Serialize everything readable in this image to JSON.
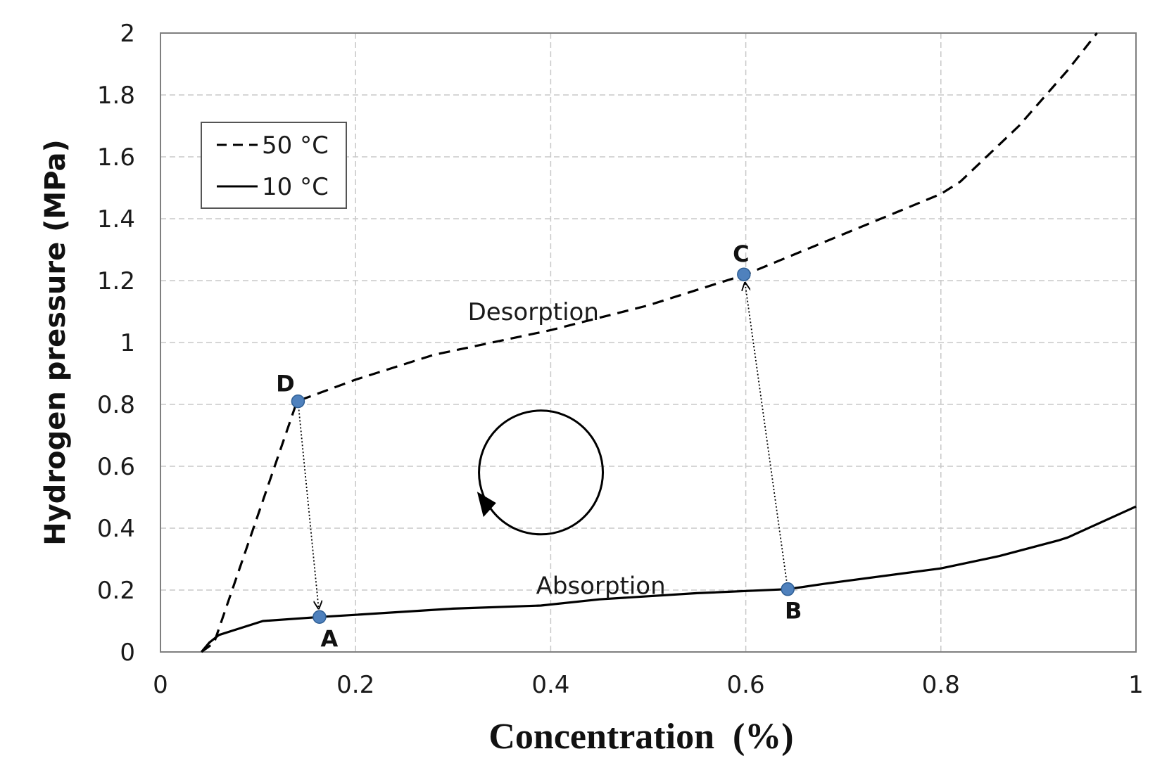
{
  "chart_data": {
    "type": "line",
    "title": "",
    "xlabel": "Concentration  (%)",
    "ylabel": "Hydrogen pressure (MPa)",
    "xlim": [
      0,
      1
    ],
    "ylim": [
      0,
      2
    ],
    "x_ticks": [
      "0",
      "0.2",
      "0.4",
      "0.6",
      "0.8",
      "1"
    ],
    "y_ticks": [
      "0",
      "0.2",
      "0.4",
      "0.6",
      "0.8",
      "1",
      "1.2",
      "1.4",
      "1.6",
      "1.8",
      "2"
    ],
    "x_tick_values": [
      0,
      0.2,
      0.4,
      0.6,
      0.8,
      1
    ],
    "y_tick_values": [
      0,
      0.2,
      0.4,
      0.6,
      0.8,
      1,
      1.2,
      1.4,
      1.6,
      1.8,
      2
    ],
    "grid": true,
    "legend_position": "top-left",
    "series": [
      {
        "name": "50 °C",
        "style": "dashed",
        "color": "#000000",
        "x": [
          0.042,
          0.055,
          0.14,
          0.2,
          0.28,
          0.4,
          0.5,
          0.6,
          0.7,
          0.8,
          0.82,
          0.88,
          0.93,
          0.96
        ],
        "y": [
          0.0,
          0.03,
          0.81,
          0.88,
          0.96,
          1.04,
          1.12,
          1.22,
          1.35,
          1.48,
          1.52,
          1.7,
          1.88,
          2.0
        ]
      },
      {
        "name": "10 °C",
        "style": "solid",
        "color": "#000000",
        "x": [
          0.042,
          0.05,
          0.06,
          0.08,
          0.105,
          0.163,
          0.2,
          0.3,
          0.39,
          0.45,
          0.55,
          0.643,
          0.68,
          0.8,
          0.86,
          0.92,
          0.93,
          1.0
        ],
        "y": [
          0.0,
          0.03,
          0.055,
          0.075,
          0.1,
          0.113,
          0.12,
          0.14,
          0.15,
          0.17,
          0.19,
          0.203,
          0.22,
          0.27,
          0.31,
          0.36,
          0.37,
          0.47
        ]
      }
    ],
    "points": [
      {
        "label": "A",
        "x": 0.163,
        "y": 0.113
      },
      {
        "label": "B",
        "x": 0.643,
        "y": 0.203
      },
      {
        "label": "C",
        "x": 0.598,
        "y": 1.22
      },
      {
        "label": "D",
        "x": 0.141,
        "y": 0.81
      }
    ],
    "transitions": [
      {
        "from": "D",
        "to": "A"
      },
      {
        "from": "B",
        "to": "C"
      }
    ],
    "annotations": [
      {
        "text": "Desorption",
        "x": 0.315,
        "y": 1.1
      },
      {
        "text": "Absorption",
        "x": 0.385,
        "y": 0.215
      }
    ],
    "cycle_indicator": {
      "direction": "counterclockwise",
      "center_x": 0.39,
      "center_y": 0.58
    },
    "marker_color": "#4f81bd"
  }
}
